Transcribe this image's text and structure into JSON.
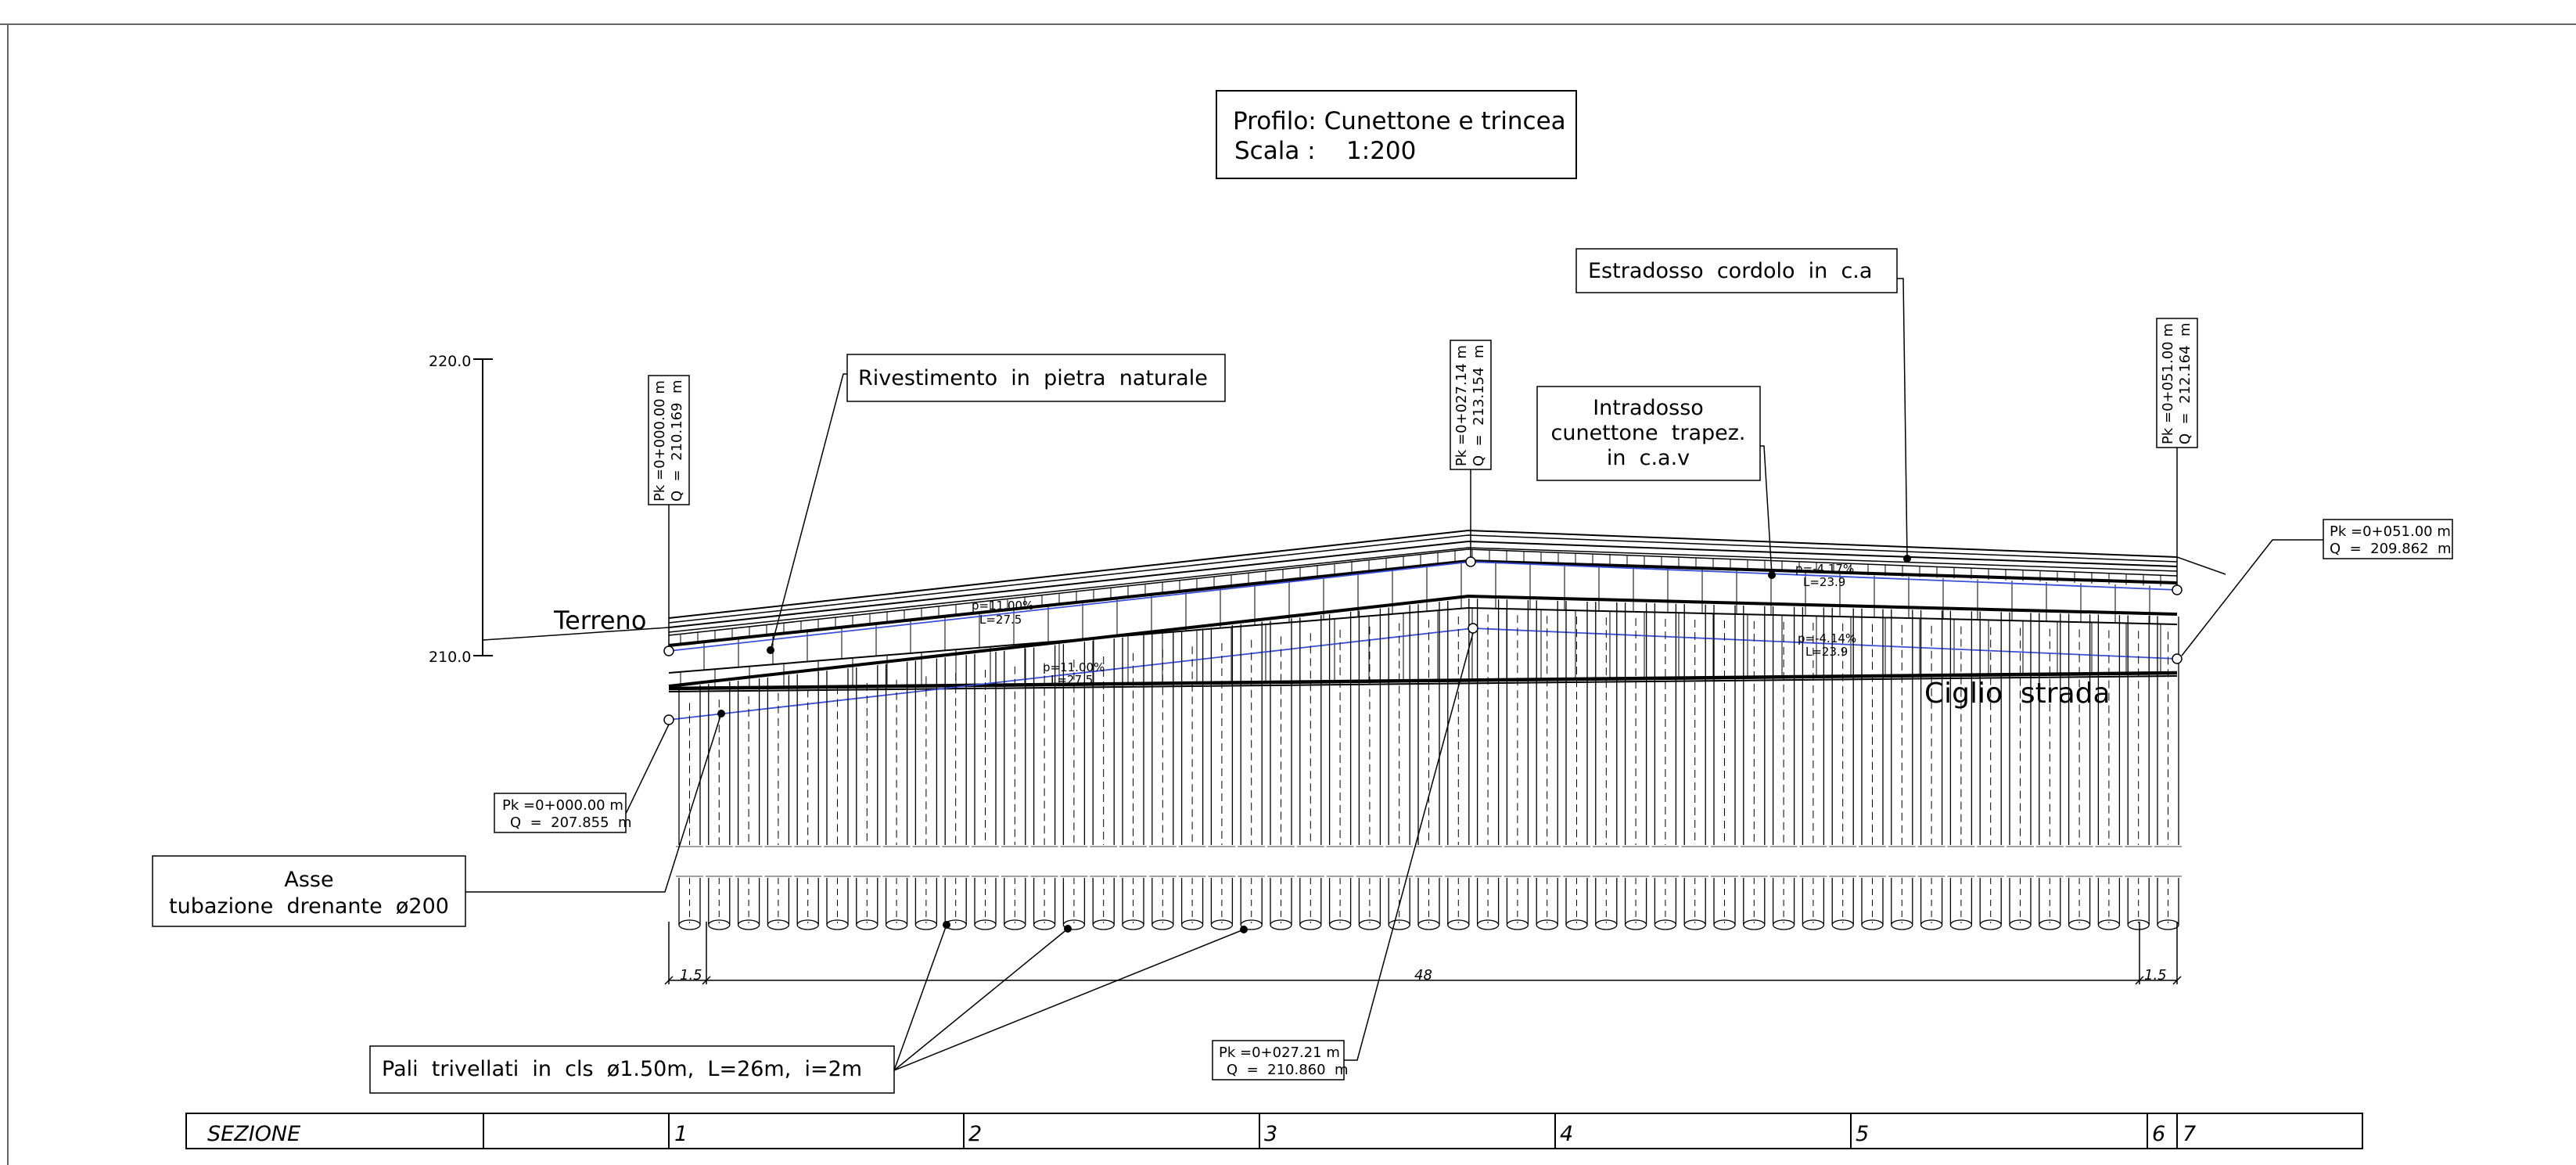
{
  "title_block": {
    "line1": "Profilo: Cunettone e trincea",
    "line2": "Scala :    1:200"
  },
  "elevation_scale": {
    "top_label": "220.0",
    "bottom_label": "210.0"
  },
  "labels": {
    "terreno": "Terreno",
    "ciglio": "Ciglio  strada",
    "rivestimento": "Rivestimento  in  pietra  naturale",
    "estradosso": "Estradosso  cordolo  in  c.a",
    "intradosso_1": "Intradosso",
    "intradosso_2": "cunettone  trapez.",
    "intradosso_3": "in  c.a.v",
    "asse_1": "Asse",
    "asse_2": "tubazione  drenante  ø200",
    "pali": "Pali  trivellati  in  cls  ø1.50m,  L=26m,  i=2m"
  },
  "points": {
    "p1": {
      "pk": "Pk =0+000.00 m",
      "q": "Q  =  210.169  m"
    },
    "p2": {
      "pk": "Pk =0+027.14 m",
      "q": "Q  =  213.154  m"
    },
    "p3": {
      "pk": "Pk =0+051.00 m",
      "q": "Q  =  212.164  m"
    },
    "p4": {
      "pk": "Pk =0+051.00 m",
      "q": "Q  =  209.862  m"
    },
    "p5": {
      "pk": "Pk =0+000.00 m",
      "q": "Q  =  207.855  m"
    },
    "p6": {
      "pk": "Pk =0+027.21 m",
      "q": "Q  =  210.860  m"
    }
  },
  "slopes": {
    "s1_p": "p=11.00%",
    "s1_l": "L=27.5",
    "s2_p": "p=11.00%",
    "s2_l": "L=27.5",
    "s3_p": "p=-4.17%",
    "s3_l": "L=23.9",
    "s4_p": "p=-4.14%",
    "s4_l": "L=23.9"
  },
  "dimensions": {
    "left": "1.5",
    "middle": "48",
    "right": "1.5"
  },
  "sezione": {
    "header": "SEZIONE",
    "cols": [
      "1",
      "2",
      "3",
      "4",
      "5",
      "6",
      "7"
    ]
  },
  "colors": {
    "line": "#000000",
    "blue_profile": "#3a4fd8",
    "background": "#ffffff"
  }
}
